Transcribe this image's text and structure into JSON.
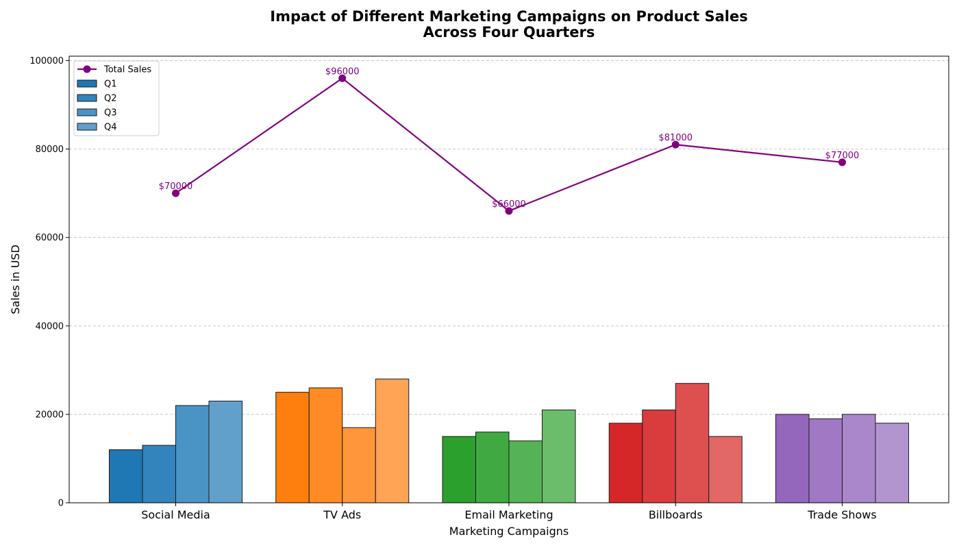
{
  "chart_data": {
    "type": "bar",
    "title_lines": [
      "Impact of Different Marketing Campaigns on Product Sales",
      "Across Four Quarters"
    ],
    "xlabel": "Marketing Campaigns",
    "ylabel": "Sales in USD",
    "ylim": [
      0,
      100000
    ],
    "yticks": [
      0,
      20000,
      40000,
      60000,
      80000,
      100000
    ],
    "ytick_labels": [
      "0",
      "20000",
      "40000",
      "60000",
      "80000",
      "100000"
    ],
    "grid": "y-dashed",
    "legend_position": "top-left",
    "categories": [
      "Social Media",
      "TV Ads",
      "Email Marketing",
      "Billboards",
      "Trade Shows"
    ],
    "series": [
      {
        "name": "Q1",
        "values": [
          12000,
          25000,
          15000,
          18000,
          20000
        ]
      },
      {
        "name": "Q2",
        "values": [
          13000,
          26000,
          16000,
          21000,
          19000
        ]
      },
      {
        "name": "Q3",
        "values": [
          22000,
          17000,
          14000,
          27000,
          20000
        ]
      },
      {
        "name": "Q4",
        "values": [
          23000,
          28000,
          21000,
          15000,
          18000
        ]
      }
    ],
    "line_series": {
      "name": "Total Sales",
      "values": [
        70000,
        96000,
        66000,
        81000,
        77000
      ],
      "labels": [
        "$70000",
        "$96000",
        "$66000",
        "$81000",
        "$77000"
      ],
      "color": "#800080"
    },
    "category_colors": [
      [
        "#1f77b4",
        "#3383bd",
        "#4a93c5",
        "#62a0cc"
      ],
      [
        "#ff7f0e",
        "#ff8b26",
        "#ff963b",
        "#ffa355"
      ],
      [
        "#2ca02c",
        "#41a941",
        "#56b256",
        "#6bbd6b"
      ],
      [
        "#d62728",
        "#da3b3c",
        "#de5050",
        "#e26868"
      ],
      [
        "#9467bd",
        "#a078c4",
        "#aa87ca",
        "#b295cf"
      ]
    ],
    "legend_colors": [
      "#1f77b4",
      "#3383bd",
      "#4a93c5",
      "#62a0cc"
    ]
  }
}
